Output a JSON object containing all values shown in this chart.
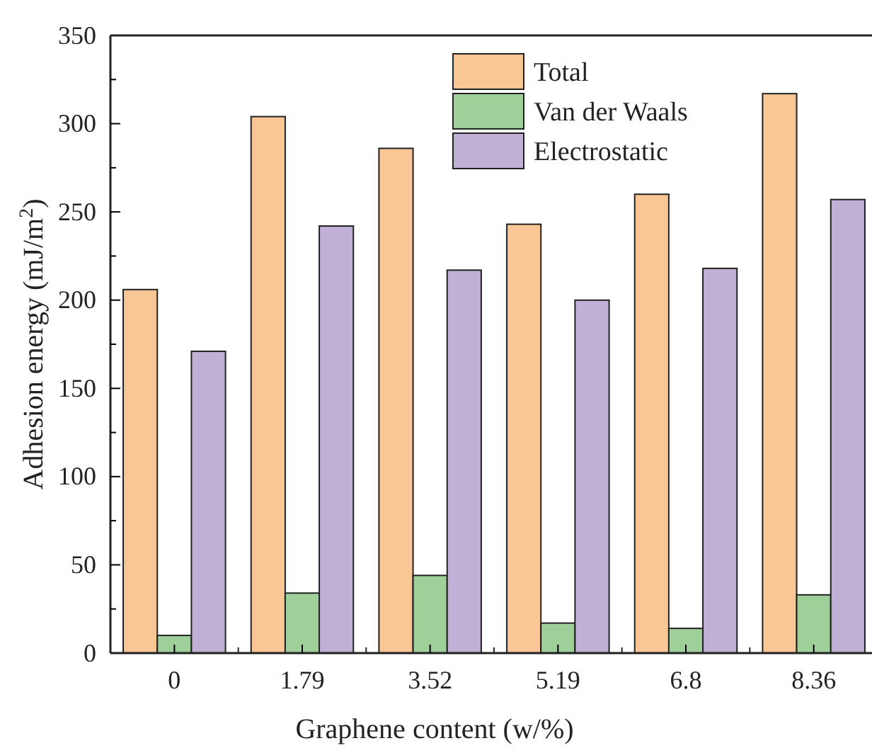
{
  "chart_data": {
    "type": "bar",
    "xlabel": "Graphene content (w/%)",
    "ylabel": "Adhesion energy (mJ/m$^{2}$)",
    "categories": [
      "0",
      "1.79",
      "3.52",
      "5.19",
      "6.8",
      "8.36"
    ],
    "series": [
      {
        "name": "Total",
        "color": "#f9c795",
        "values": [
          206,
          304,
          286,
          243,
          260,
          317
        ]
      },
      {
        "name": "Van der Waals",
        "color": "#a0d09a",
        "values": [
          10,
          34,
          44,
          17,
          14,
          33
        ]
      },
      {
        "name": "Electrostatic",
        "color": "#c0b0d6",
        "values": [
          171,
          242,
          217,
          200,
          218,
          257
        ]
      }
    ],
    "ylim": [
      0,
      350
    ],
    "yticks": [
      0,
      {
        "value": 25,
        "label": null
      },
      50,
      {
        "value": 75,
        "label": null
      },
      100,
      {
        "value": 125,
        "label": null
      },
      150,
      {
        "value": 175,
        "label": null
      },
      200,
      {
        "value": 225,
        "label": null
      },
      250,
      {
        "value": 275,
        "label": null
      },
      300,
      {
        "value": 325,
        "label": null
      },
      350
    ],
    "legend": "top right",
    "grid": false
  }
}
